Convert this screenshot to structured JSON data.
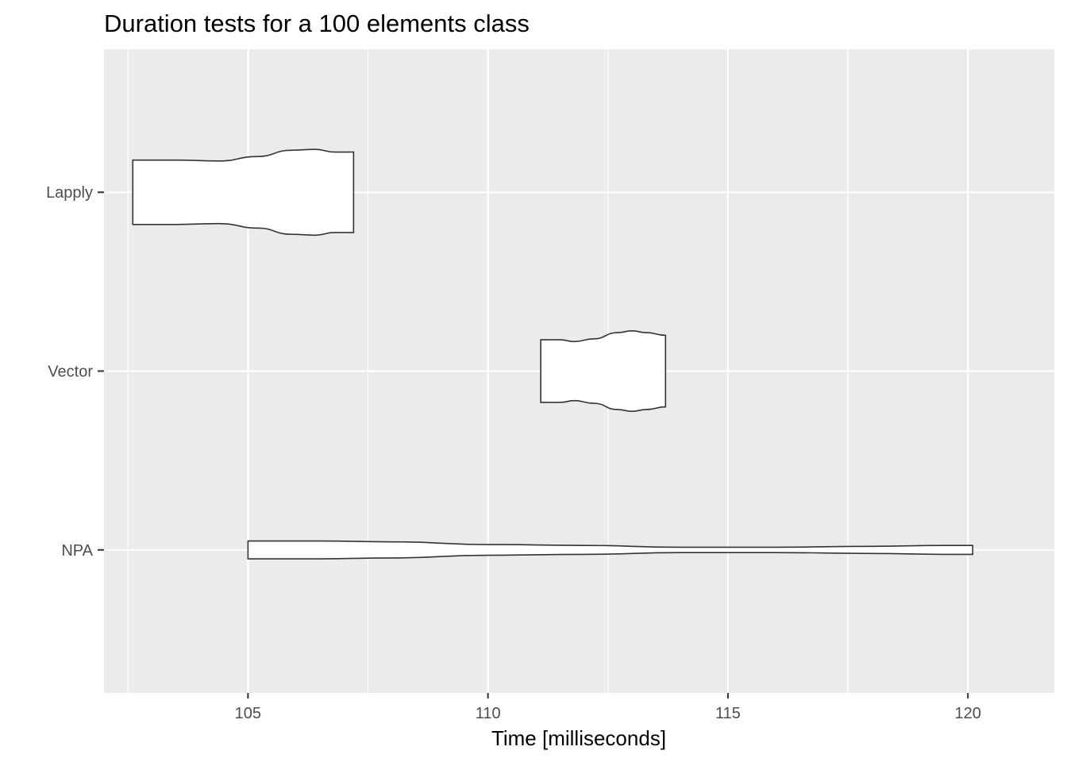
{
  "chart_data": {
    "type": "violin",
    "orientation": "horizontal",
    "title": "Duration tests for a  100  elements  class",
    "xlabel": "Time [milliseconds]",
    "ylabel": "",
    "xlim": [
      102,
      121.8
    ],
    "x_ticks": [
      105,
      110,
      115,
      120
    ],
    "x_tick_labels": [
      "105",
      "110",
      "115",
      "120"
    ],
    "categories": [
      "Lapply",
      "Vector",
      "NPA"
    ],
    "grid": true,
    "legend": "none",
    "colors": {
      "panel": "#ebebeb",
      "grid": "#ffffff",
      "fill": "#ffffff",
      "outline": "#333333"
    },
    "series": [
      {
        "category": "Lapply",
        "profile": [
          [
            102.6,
            0.36
          ],
          [
            103.5,
            0.36
          ],
          [
            104.4,
            0.35
          ],
          [
            105.2,
            0.4
          ],
          [
            105.9,
            0.47
          ],
          [
            106.4,
            0.48
          ],
          [
            106.8,
            0.45
          ],
          [
            107.2,
            0.45
          ]
        ]
      },
      {
        "category": "Vector",
        "profile": [
          [
            111.1,
            0.35
          ],
          [
            111.5,
            0.35
          ],
          [
            111.8,
            0.33
          ],
          [
            112.2,
            0.36
          ],
          [
            112.7,
            0.43
          ],
          [
            113.0,
            0.45
          ],
          [
            113.3,
            0.43
          ],
          [
            113.7,
            0.4
          ]
        ]
      },
      {
        "category": "NPA",
        "profile": [
          [
            105.0,
            0.1
          ],
          [
            105.5,
            0.1
          ],
          [
            106.5,
            0.1
          ],
          [
            108.0,
            0.09
          ],
          [
            110.0,
            0.06
          ],
          [
            112.0,
            0.05
          ],
          [
            114.0,
            0.03
          ],
          [
            116.0,
            0.03
          ],
          [
            118.0,
            0.04
          ],
          [
            119.5,
            0.05
          ],
          [
            120.1,
            0.05
          ]
        ]
      }
    ]
  }
}
